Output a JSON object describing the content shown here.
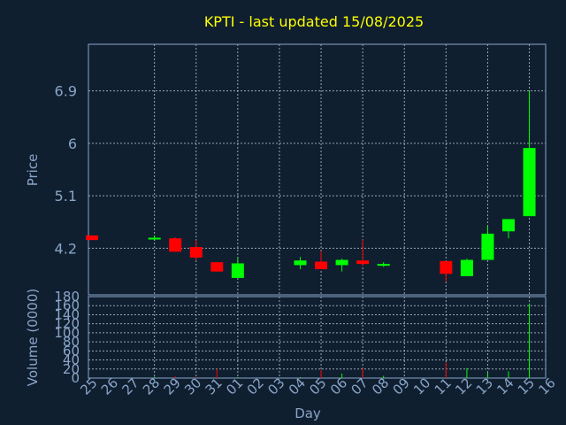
{
  "chart_data": {
    "type": "candlestick",
    "title": "KPTI - last updated 15/08/2025",
    "xlabel": "Day",
    "price_panel": {
      "ylabel": "Price",
      "yticks": [
        "4.2",
        "5.1",
        "6",
        "6.9"
      ],
      "ylim": [
        3.4,
        7.7
      ]
    },
    "volume_panel": {
      "ylabel": "Volume (0000)",
      "yticks": [
        "0",
        "20",
        "40",
        "60",
        "80",
        "100",
        "120",
        "140",
        "160",
        "180"
      ],
      "ylim": [
        0,
        180
      ]
    },
    "x_labels": [
      "25",
      "26",
      "27",
      "28",
      "29",
      "30",
      "31",
      "01",
      "02",
      "03",
      "04",
      "05",
      "06",
      "07",
      "08",
      "09",
      "10",
      "11",
      "12",
      "13",
      "14",
      "15",
      "16"
    ],
    "candles": [
      {
        "x": "25",
        "open": 4.42,
        "close": 4.34,
        "high": 4.42,
        "low": 4.34,
        "volume": 0
      },
      {
        "x": "28",
        "open": 4.35,
        "close": 4.38,
        "high": 4.42,
        "low": 4.33,
        "volume": 3
      },
      {
        "x": "29",
        "open": 4.37,
        "close": 4.14,
        "high": 4.39,
        "low": 4.14,
        "volume": 4
      },
      {
        "x": "30",
        "open": 4.22,
        "close": 4.04,
        "high": 4.34,
        "low": 3.99,
        "volume": 3
      },
      {
        "x": "31",
        "open": 3.96,
        "close": 3.8,
        "high": 3.96,
        "low": 3.8,
        "volume": 20
      },
      {
        "x": "01",
        "open": 3.69,
        "close": 3.94,
        "high": 4.04,
        "low": 3.69,
        "volume": 2
      },
      {
        "x": "04",
        "open": 3.91,
        "close": 3.99,
        "high": 4.05,
        "low": 3.84,
        "volume": 2
      },
      {
        "x": "05",
        "open": 3.97,
        "close": 3.84,
        "high": 4.15,
        "low": 3.84,
        "volume": 18
      },
      {
        "x": "06",
        "open": 3.91,
        "close": 4.0,
        "high": 4.02,
        "low": 3.8,
        "volume": 10
      },
      {
        "x": "07",
        "open": 3.99,
        "close": 3.93,
        "high": 4.35,
        "low": 3.9,
        "volume": 22
      },
      {
        "x": "08",
        "open": 3.91,
        "close": 3.93,
        "high": 3.96,
        "low": 3.88,
        "volume": 5
      },
      {
        "x": "11",
        "open": 3.98,
        "close": 3.76,
        "high": 3.98,
        "low": 3.63,
        "volume": 35
      },
      {
        "x": "12",
        "open": 3.72,
        "close": 4.0,
        "high": 4.02,
        "low": 3.72,
        "volume": 22
      },
      {
        "x": "13",
        "open": 4.0,
        "close": 4.45,
        "high": 4.58,
        "low": 4.0,
        "volume": 12
      },
      {
        "x": "14",
        "open": 4.49,
        "close": 4.7,
        "high": 4.7,
        "low": 4.37,
        "volume": 15
      },
      {
        "x": "15",
        "open": 4.75,
        "close": 5.92,
        "high": 6.9,
        "low": 4.75,
        "volume": 165
      }
    ],
    "colors": {
      "up": "#00ff00",
      "down": "#ff0000",
      "title": "#ffff00",
      "background": "#0f1f30"
    },
    "grid": true
  }
}
